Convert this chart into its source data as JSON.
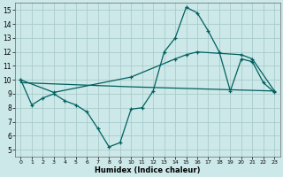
{
  "xlabel": "Humidex (Indice chaleur)",
  "xlim": [
    -0.5,
    23.5
  ],
  "ylim": [
    4.5,
    15.5
  ],
  "yticks": [
    5,
    6,
    7,
    8,
    9,
    10,
    11,
    12,
    13,
    14,
    15
  ],
  "xticks": [
    0,
    1,
    2,
    3,
    4,
    5,
    6,
    7,
    8,
    9,
    10,
    11,
    12,
    13,
    14,
    15,
    16,
    17,
    18,
    19,
    20,
    21,
    22,
    23
  ],
  "bg_color": "#cce8e8",
  "grid_color": "#aacccc",
  "line_color": "#006060",
  "line1_x": [
    0,
    1,
    2,
    3,
    4,
    5,
    6,
    7,
    8,
    9,
    10,
    11,
    12,
    13,
    14,
    15,
    16,
    17,
    18,
    19,
    20,
    21,
    22,
    23
  ],
  "line1_y": [
    10.0,
    8.2,
    8.7,
    9.0,
    8.5,
    8.2,
    7.7,
    6.5,
    5.2,
    5.5,
    7.9,
    8.0,
    9.2,
    12.0,
    13.0,
    15.2,
    14.8,
    13.5,
    12.0,
    9.2,
    11.5,
    11.3,
    9.8,
    9.1
  ],
  "line2_x": [
    0,
    3,
    10,
    14,
    15,
    16,
    20,
    21,
    23
  ],
  "line2_y": [
    10.0,
    9.1,
    10.2,
    11.5,
    11.8,
    12.0,
    11.8,
    11.5,
    9.2
  ],
  "line3_x": [
    0,
    10,
    23
  ],
  "line3_y": [
    9.8,
    9.5,
    9.2
  ]
}
